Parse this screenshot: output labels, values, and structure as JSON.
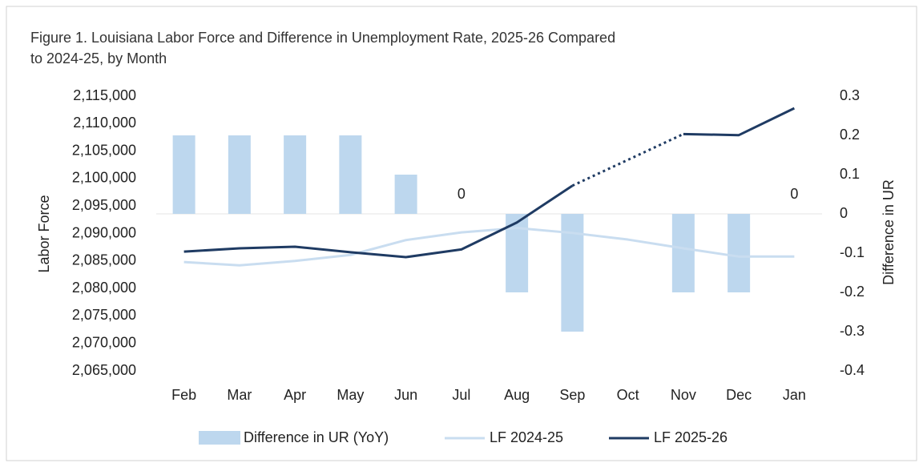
{
  "chart_data": {
    "type": "combo",
    "title": [
      "Figure 1. Louisiana Labor Force and Difference in Unemployment Rate, 2025-26 Compared",
      "to 2024-25, by Month"
    ],
    "ylabel": "Labor Force",
    "y2label": "Difference in UR",
    "categories": [
      "Feb",
      "Mar",
      "Apr",
      "May",
      "Jun",
      "Jul",
      "Aug",
      "Sep",
      "Oct",
      "Nov",
      "Dec",
      "Jan"
    ],
    "ylim": [
      2065000,
      2115000
    ],
    "yticks": [
      {
        "value": 2065000,
        "label": "2,065,000"
      },
      {
        "value": 2070000,
        "label": "2,070,000"
      },
      {
        "value": 2075000,
        "label": "2,075,000"
      },
      {
        "value": 2080000,
        "label": "2,080,000"
      },
      {
        "value": 2085000,
        "label": "2,085,000"
      },
      {
        "value": 2090000,
        "label": "2,090,000"
      },
      {
        "value": 2095000,
        "label": "2,095,000"
      },
      {
        "value": 2100000,
        "label": "2,100,000"
      },
      {
        "value": 2105000,
        "label": "2,105,000"
      },
      {
        "value": 2110000,
        "label": "2,110,000"
      },
      {
        "value": 2115000,
        "label": "2,115,000"
      }
    ],
    "y2lim": [
      -0.4,
      0.3
    ],
    "y2ticks": [
      -0.4,
      -0.3,
      -0.2,
      -0.1,
      0,
      0.1,
      0.2,
      0.3
    ],
    "series": [
      {
        "name": "Difference in UR (YoY)",
        "type": "bar",
        "axis": "y2",
        "color": "#bdd7ee",
        "values": [
          0.2,
          0.2,
          0.2,
          0.2,
          0.1,
          0,
          -0.2,
          -0.3,
          null,
          -0.2,
          -0.2,
          0
        ],
        "value_labels": [
          null,
          null,
          null,
          null,
          null,
          "0",
          null,
          null,
          null,
          null,
          null,
          "0"
        ]
      },
      {
        "name": "LF 2024-25",
        "type": "line",
        "color": "#c9ddf0",
        "values": [
          2084800,
          2084200,
          2085000,
          2086100,
          2088800,
          2090200,
          2091000,
          2090100,
          2088900,
          2087300,
          2085800,
          2085800
        ]
      },
      {
        "name": "LF 2025-26",
        "type": "line",
        "color": "#1f3b63",
        "values": [
          2086700,
          2087300,
          2087600,
          2086600,
          2085700,
          2087100,
          2092000,
          2098700,
          null,
          2108100,
          2107900,
          2112800
        ]
      }
    ]
  }
}
